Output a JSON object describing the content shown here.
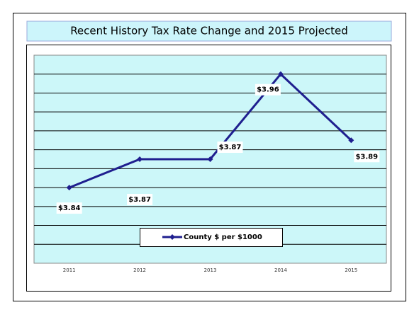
{
  "chart_data": {
    "type": "line",
    "title": "Recent History Tax Rate Change and 2015 Projected",
    "categories": [
      "2011",
      "2012",
      "2013",
      "2014",
      "2015"
    ],
    "series": [
      {
        "name": "County $ per $1000",
        "color": "#1f1f8f",
        "values": [
          3.84,
          3.87,
          3.87,
          3.96,
          3.89
        ],
        "value_labels": [
          "$3.84",
          "$3.87",
          "$3.87",
          "$3.96",
          "$3.89"
        ]
      }
    ],
    "ylim": [
      3.76,
      3.98
    ],
    "yticks": [
      3.76,
      3.78,
      3.8,
      3.82,
      3.84,
      3.86,
      3.88,
      3.9,
      3.92,
      3.94,
      3.96,
      3.98
    ],
    "grid": true,
    "legend": "bottom"
  }
}
